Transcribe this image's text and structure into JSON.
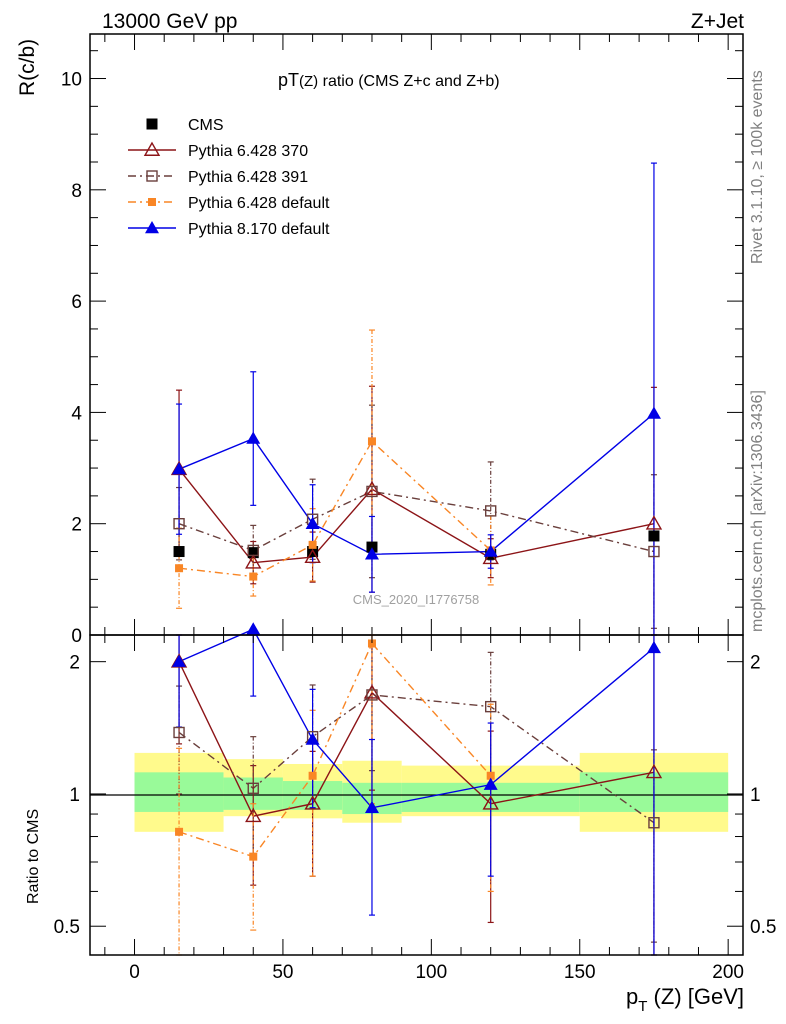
{
  "header": {
    "left": "13000 GeV pp",
    "right": "Z+Jet"
  },
  "side_labels": {
    "rivet": "Rivet 3.1.10, ≥ 100k events",
    "mcplots": "mcplots.cern.ch [arXiv:1306.3436]"
  },
  "chart_data": {
    "type": "line",
    "title": "pT(Z) ratio (CMS  Z+c and Z+b)",
    "title_parts": {
      "prefix": "pT",
      "sub": "(Z)",
      "suffix": " ratio (CMS  Z+c and Z+b)"
    },
    "watermark": "CMS_2020_I1776758",
    "xlabel": "p_T (Z) [GeV]",
    "xlabel_parts": {
      "main": "p",
      "sub": "T",
      "rest": " (Z) [GeV]"
    },
    "ylabel": "R(c/b)",
    "ratio_ylabel": "Ratio to CMS",
    "xlim": [
      -15,
      205
    ],
    "ylim": [
      0,
      10.8
    ],
    "ratio_ylim": [
      0.43,
      2.3
    ],
    "x_ticks": [
      0,
      50,
      100,
      150,
      200
    ],
    "x_tick_labels": [
      "0",
      "50",
      "100",
      "150",
      "200"
    ],
    "y_ticks": [
      0,
      2,
      4,
      6,
      8,
      10
    ],
    "y_tick_labels": [
      "0",
      "2",
      "4",
      "6",
      "8",
      "10"
    ],
    "ratio_ticks": [
      0.5,
      1,
      2
    ],
    "ratio_tick_labels": [
      "0.5",
      "1",
      "2"
    ],
    "bins": [
      [
        0,
        30
      ],
      [
        30,
        50
      ],
      [
        50,
        70
      ],
      [
        70,
        90
      ],
      [
        90,
        150
      ],
      [
        150,
        200
      ]
    ],
    "x": [
      15,
      40,
      60,
      80,
      120,
      175
    ],
    "series": [
      {
        "name": "CMS",
        "legend": "CMS",
        "values": [
          1.5,
          1.48,
          1.5,
          1.58,
          1.45,
          1.78
        ],
        "color": "#000000",
        "marker": "square-filled",
        "line": "none"
      },
      {
        "name": "Pythia 6.428 370",
        "legend": "Pythia 6.428 370",
        "values": [
          2.98,
          1.3,
          1.4,
          2.62,
          1.38,
          2.0
        ],
        "err": [
          1.42,
          0.38,
          0.45,
          1.85,
          0.35,
          2.45
        ],
        "ratio": [
          2.0,
          0.89,
          0.95,
          1.7,
          0.95,
          1.12
        ],
        "ratio_err": [
          0.7,
          0.27,
          0.3,
          0.68,
          0.44,
          1.3
        ],
        "color": "#8c1417",
        "marker": "triangle-open",
        "line": "solid"
      },
      {
        "name": "Pythia 6.428 391",
        "legend": "Pythia 6.428 391",
        "values": [
          2.0,
          1.52,
          2.08,
          2.58,
          2.23,
          1.5
        ],
        "err": [
          0.65,
          0.45,
          0.72,
          1.55,
          0.88,
          1.38
        ],
        "ratio": [
          1.38,
          1.03,
          1.35,
          1.68,
          1.58,
          0.86
        ],
        "ratio_err": [
          0.38,
          0.32,
          0.42,
          0.55,
          0.52,
          0.4
        ],
        "color": "#6a3f3c",
        "marker": "square-open",
        "line": "dashdot"
      },
      {
        "name": "Pythia 6.428 default",
        "legend": "Pythia 6.428 default",
        "values": [
          1.2,
          1.05,
          1.62,
          3.48,
          1.52,
          null
        ],
        "err": [
          0.72,
          0.35,
          0.65,
          2.0,
          0.62,
          null
        ],
        "ratio": [
          0.82,
          0.72,
          1.1,
          2.2,
          1.1,
          null
        ],
        "ratio_err": [
          0.45,
          0.23,
          0.45,
          1.25,
          0.5,
          null
        ],
        "color": "#f98625",
        "marker": "square-filled-small",
        "line": "dashdot"
      },
      {
        "name": "Pythia 8.170 default",
        "legend": "Pythia 8.170 default",
        "values": [
          2.98,
          3.53,
          2.0,
          1.45,
          1.5,
          3.98
        ],
        "err": [
          1.17,
          1.2,
          0.7,
          0.68,
          0.3,
          4.5
        ],
        "ratio": [
          2.0,
          2.37,
          1.33,
          0.93,
          1.05,
          2.15
        ],
        "ratio_err": [
          0.58,
          0.7,
          0.4,
          0.4,
          0.4,
          1.9
        ],
        "color": "#0000e6",
        "marker": "triangle-filled",
        "line": "solid"
      }
    ],
    "uncertainty_band": {
      "inner": [
        [
          0.91,
          1.12
        ],
        [
          0.92,
          1.09
        ],
        [
          0.92,
          1.07
        ],
        [
          0.9,
          1.06
        ],
        [
          0.91,
          1.06
        ],
        [
          0.91,
          1.12
        ]
      ],
      "outer": [
        [
          0.82,
          1.24
        ],
        [
          0.89,
          1.2
        ],
        [
          0.88,
          1.17
        ],
        [
          0.86,
          1.19
        ],
        [
          0.89,
          1.16
        ],
        [
          0.82,
          1.24
        ]
      ],
      "inner_color": "#99fa99",
      "outer_color": "#fffa8c"
    }
  }
}
